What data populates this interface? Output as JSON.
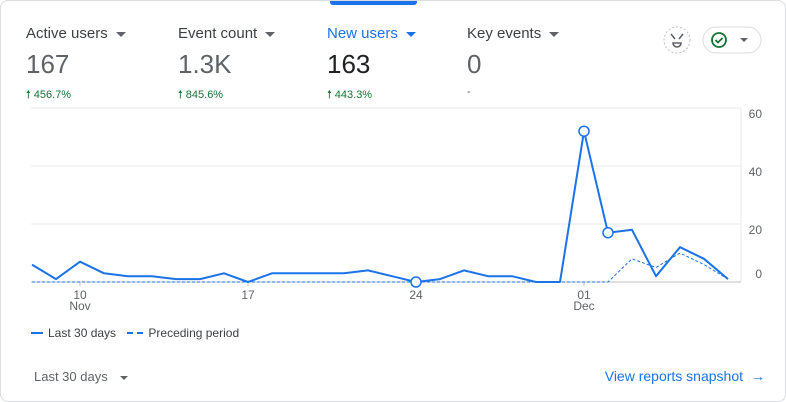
{
  "metrics": [
    {
      "label": "Active users",
      "value": 167,
      "change": "456.7%"
    },
    {
      "label": "Event count",
      "value": "1.3K",
      "change": "845.6%"
    },
    {
      "label": "New users",
      "value": 163,
      "change": "443.3%"
    },
    {
      "label": "Key events",
      "value": 0,
      "change": "-"
    }
  ],
  "chart_data": {
    "type": "line",
    "series": [
      {
        "name": "Last 30 days",
        "color": "#1a73e8",
        "dash": false,
        "values": [
          6,
          1,
          7,
          3,
          2,
          2,
          1,
          1,
          3,
          0,
          3,
          3,
          3,
          3,
          4,
          2,
          0,
          1,
          4,
          2,
          2,
          0,
          0,
          52,
          17,
          18,
          2,
          12,
          8,
          1
        ]
      },
      {
        "name": "Preceding period",
        "color": "#1a73e8",
        "dash": true,
        "values": [
          0,
          0,
          0,
          0,
          0,
          0,
          0,
          0,
          0,
          0,
          0,
          0,
          0,
          0,
          0,
          0,
          0,
          0,
          0,
          0,
          0,
          0,
          0,
          0,
          0,
          8,
          5,
          10,
          6,
          1
        ]
      }
    ],
    "highlighted_points": [
      16,
      23,
      24
    ],
    "xlim": [
      0,
      29
    ],
    "xticks": [
      {
        "value": 2,
        "label": "10"
      },
      {
        "value": 9,
        "label": "17"
      },
      {
        "value": 16,
        "label": "24"
      },
      {
        "value": 23,
        "label": "01"
      }
    ],
    "x_month_labels": [
      {
        "value": 2,
        "label": "Nov"
      },
      {
        "value": 23,
        "label": "Dec"
      }
    ],
    "ylim": [
      0,
      60
    ],
    "yticks": [
      0,
      20,
      40,
      60
    ],
    "grid": true,
    "legend": "bottom-left"
  },
  "footer": {
    "period": "Last 30 days",
    "link": "View reports snapshot"
  }
}
